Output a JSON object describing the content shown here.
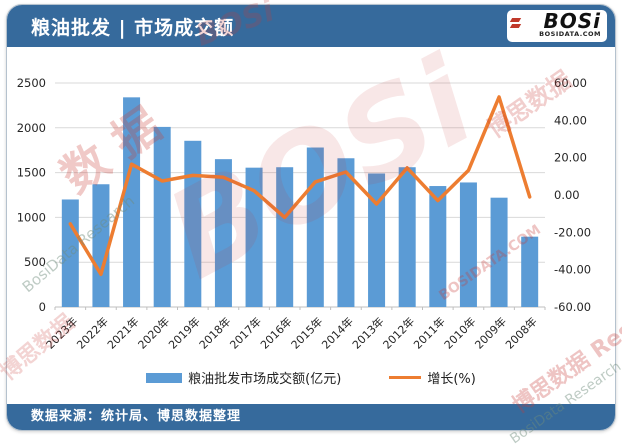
{
  "header": {
    "title": "粮油批发 | 市场成交额",
    "logo": {
      "text": "BOSi",
      "domain": "BOSIDATA.COM"
    }
  },
  "footer": {
    "source": "数据来源：统计局、博思数据整理"
  },
  "watermarks": {
    "w1": "BOSi",
    "w2": "数 据",
    "w3": "BosiData Research",
    "w4": "BOSi",
    "w5": "博思数据",
    "w6": "BOSIDATA.COM",
    "w7": "博思数据 Research",
    "w8": "BosiData Research",
    "w9": "博思数据"
  },
  "chart_data": {
    "type": "bar+line",
    "title": "粮油批发 | 市场成交额",
    "categories": [
      "2023年",
      "2022年",
      "2021年",
      "2020年",
      "2019年",
      "2018年",
      "2017年",
      "2016年",
      "2015年",
      "2014年",
      "2013年",
      "2012年",
      "2011年",
      "2010年",
      "2009年",
      "2008年"
    ],
    "series": [
      {
        "name": "粮油批发市场成交额(亿元)",
        "type": "bar",
        "axis": "left",
        "color": "#5b9bd5",
        "values": [
          1200,
          1370,
          2340,
          2010,
          1855,
          1650,
          1555,
          1560,
          1780,
          1660,
          1490,
          1560,
          1350,
          1390,
          1220,
          785
        ]
      },
      {
        "name": "增长(%)",
        "type": "line",
        "axis": "right",
        "color": "#ed7d31",
        "values": [
          -15.5,
          -42.5,
          16.5,
          7.5,
          10.5,
          9.5,
          2.3,
          -12.0,
          7.0,
          12.3,
          -4.8,
          14.5,
          -3.0,
          13.2,
          52.5,
          -1.0
        ]
      }
    ],
    "left_axis": {
      "min": 0,
      "max": 2500,
      "step": 500,
      "ticks": [
        "0",
        "500",
        "1000",
        "1500",
        "2000",
        "2500"
      ]
    },
    "right_axis": {
      "min": -60,
      "max": 60,
      "step": 20,
      "ticks": [
        "-60.00",
        "-40.00",
        "-20.00",
        "0.00",
        "20.00",
        "40.00",
        "60.00"
      ]
    },
    "grid": true,
    "gridline_color": "#d9d9d9",
    "axis_label_color": "#262626",
    "legend_position": "bottom"
  }
}
